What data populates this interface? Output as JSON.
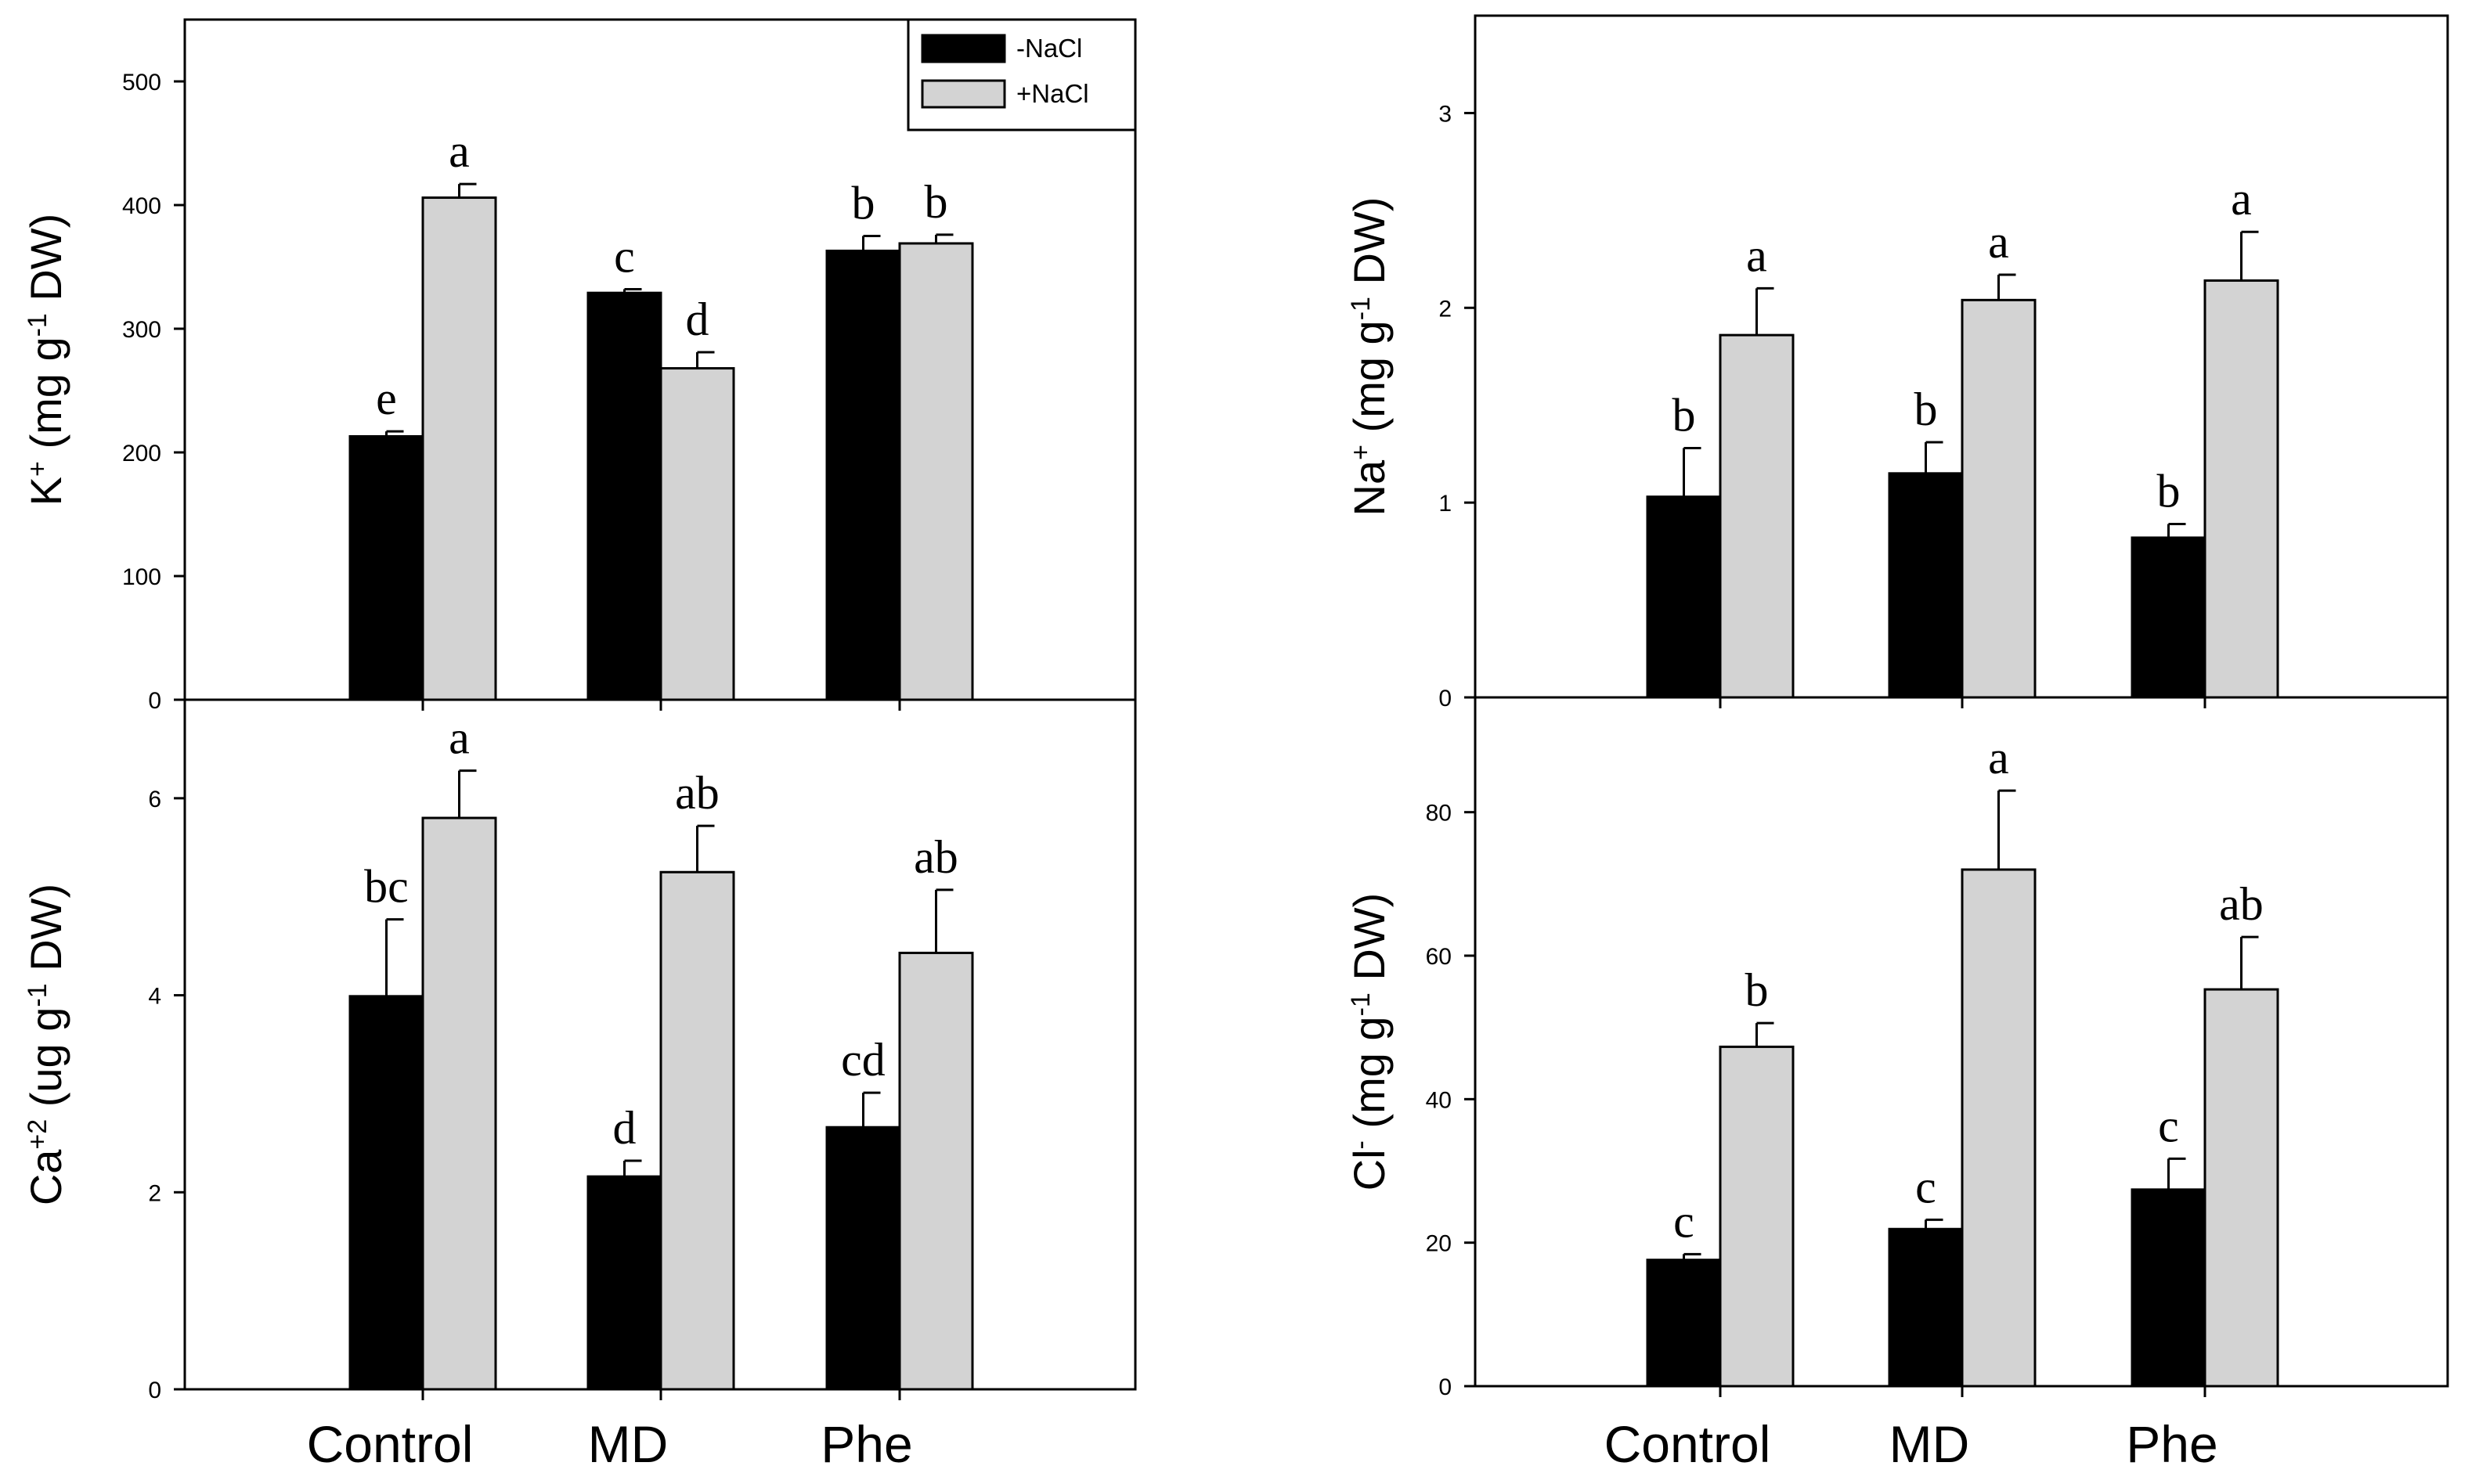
{
  "legend": {
    "entries": [
      {
        "label": "-NaCl",
        "color": "#000000"
      },
      {
        "label": "+NaCl",
        "color": "#d3d3d3"
      }
    ],
    "placement": "top-right of K+ panel"
  },
  "chart_data": [
    {
      "type": "bar",
      "id": "k",
      "ylabel": "K+ (mg g-1 DW)",
      "ylim": [
        0,
        550
      ],
      "yticks": [
        0,
        100,
        200,
        300,
        400,
        500
      ],
      "categories": [
        "Control",
        "MD",
        "Phe"
      ],
      "series": [
        {
          "name": "-NaCl",
          "values": [
            213,
            329,
            363
          ],
          "errors": [
            4,
            3,
            12
          ],
          "letters": [
            "e",
            "c",
            "b"
          ]
        },
        {
          "name": "+NaCl",
          "values": [
            406,
            268,
            369
          ],
          "errors": [
            11,
            13,
            7
          ],
          "letters": [
            "a",
            "d",
            "b"
          ]
        }
      ]
    },
    {
      "type": "bar",
      "id": "na",
      "ylabel": "Na+ (mg g-1 DW)",
      "ylim": [
        0,
        3.5
      ],
      "yticks": [
        0,
        1,
        2,
        3
      ],
      "categories": [
        "Control",
        "MD",
        "Phe"
      ],
      "series": [
        {
          "name": "-NaCl",
          "values": [
            1.03,
            1.15,
            0.82
          ],
          "errors": [
            0.25,
            0.16,
            0.07
          ],
          "letters": [
            "b",
            "b",
            "b"
          ]
        },
        {
          "name": "+NaCl",
          "values": [
            1.86,
            2.04,
            2.14
          ],
          "errors": [
            0.24,
            0.13,
            0.25
          ],
          "letters": [
            "a",
            "a",
            "a"
          ]
        }
      ]
    },
    {
      "type": "bar",
      "id": "ca",
      "ylabel": "Ca+2 (ug g-1 DW)",
      "ylim": [
        0,
        7
      ],
      "yticks": [
        0,
        2,
        4,
        6
      ],
      "categories": [
        "Control",
        "MD",
        "Phe"
      ],
      "series": [
        {
          "name": "-NaCl",
          "values": [
            3.99,
            2.16,
            2.66
          ],
          "errors": [
            0.78,
            0.16,
            0.35
          ],
          "letters": [
            "bc",
            "d",
            "cd"
          ]
        },
        {
          "name": "+NaCl",
          "values": [
            5.8,
            5.25,
            4.43
          ],
          "errors": [
            0.48,
            0.47,
            0.64
          ],
          "letters": [
            "a",
            "ab",
            "ab"
          ]
        }
      ]
    },
    {
      "type": "bar",
      "id": "cl",
      "ylabel": "Cl- (mg g-1 DW)",
      "ylim": [
        0,
        96
      ],
      "yticks": [
        0,
        20,
        40,
        60,
        80
      ],
      "categories": [
        "Control",
        "MD",
        "Phe"
      ],
      "series": [
        {
          "name": "-NaCl",
          "values": [
            17.6,
            21.9,
            27.4
          ],
          "errors": [
            0.8,
            1.3,
            4.3
          ],
          "letters": [
            "c",
            "c",
            "c"
          ]
        },
        {
          "name": "+NaCl",
          "values": [
            47.3,
            72,
            55.3
          ],
          "errors": [
            3.3,
            11,
            7.3
          ],
          "letters": [
            "b",
            "a",
            "ab"
          ]
        }
      ]
    }
  ]
}
